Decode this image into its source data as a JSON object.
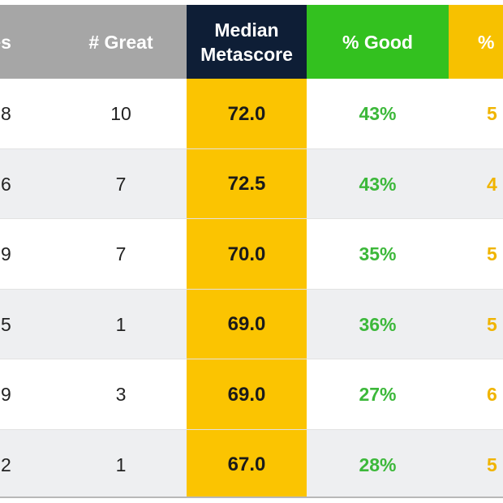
{
  "chart_data": {
    "type": "table",
    "columns": [
      "les",
      "# Great",
      "Median Metascore",
      "% Good",
      "%"
    ],
    "header": {
      "titles_label": "les",
      "great_label": "# Great",
      "meta_label_line1": "Median",
      "meta_label_line2": "Metascore",
      "good_label": "% Good",
      "fair_label": "%"
    },
    "rows": [
      {
        "titles": "8",
        "great": "10",
        "meta": "72.0",
        "good": "43%",
        "fair": "5"
      },
      {
        "titles": "6",
        "great": "7",
        "meta": "72.5",
        "good": "43%",
        "fair": "4"
      },
      {
        "titles": "9",
        "great": "7",
        "meta": "70.0",
        "good": "35%",
        "fair": "5"
      },
      {
        "titles": "5",
        "great": "1",
        "meta": "69.0",
        "good": "36%",
        "fair": "5"
      },
      {
        "titles": "9",
        "great": "3",
        "meta": "69.0",
        "good": "27%",
        "fair": "6"
      },
      {
        "titles": "2",
        "great": "1",
        "meta": "67.0",
        "good": "28%",
        "fair": "5"
      }
    ]
  },
  "colors": {
    "header_gray": "#a6a6a6",
    "header_navy": "#0e1e36",
    "header_green": "#33c11f",
    "header_yellow": "#f7c100",
    "metascore_fill": "#fbc401",
    "good_text": "#3cb83a",
    "fair_text": "#f0b400",
    "alt_row": "#eeeff1"
  }
}
